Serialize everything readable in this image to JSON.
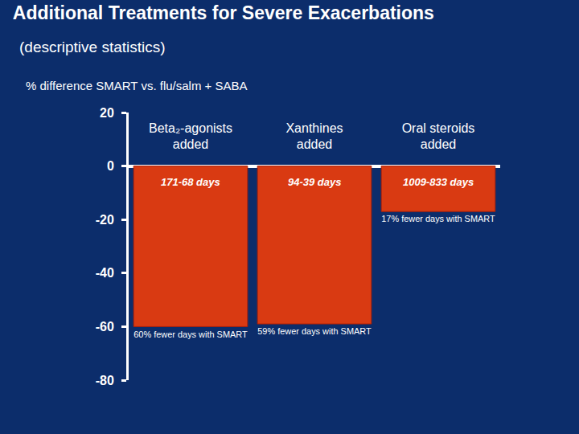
{
  "chart_data": {
    "type": "bar",
    "title": "Additional Treatments for Severe Exacerbations",
    "subtitle": "(descriptive statistics)",
    "ylabel": "% difference SMART vs. flu/salm + SABA",
    "categories": [
      "Beta₂-agonists added",
      "Xanthines added",
      "Oral steroids added"
    ],
    "values": [
      -60,
      -59,
      -17
    ],
    "value_labels": [
      "60% fewer days with SMART",
      "59% fewer days with SMART",
      "17% fewer days with SMART"
    ],
    "annotations": [
      "171-68 days",
      "94-39 days",
      "1009-833 days"
    ],
    "color": "#d93a12",
    "ylim": [
      -80,
      20
    ],
    "yticks": [
      -80,
      -60,
      -40,
      -20,
      0,
      20
    ],
    "grid": false,
    "data_labels": true
  }
}
